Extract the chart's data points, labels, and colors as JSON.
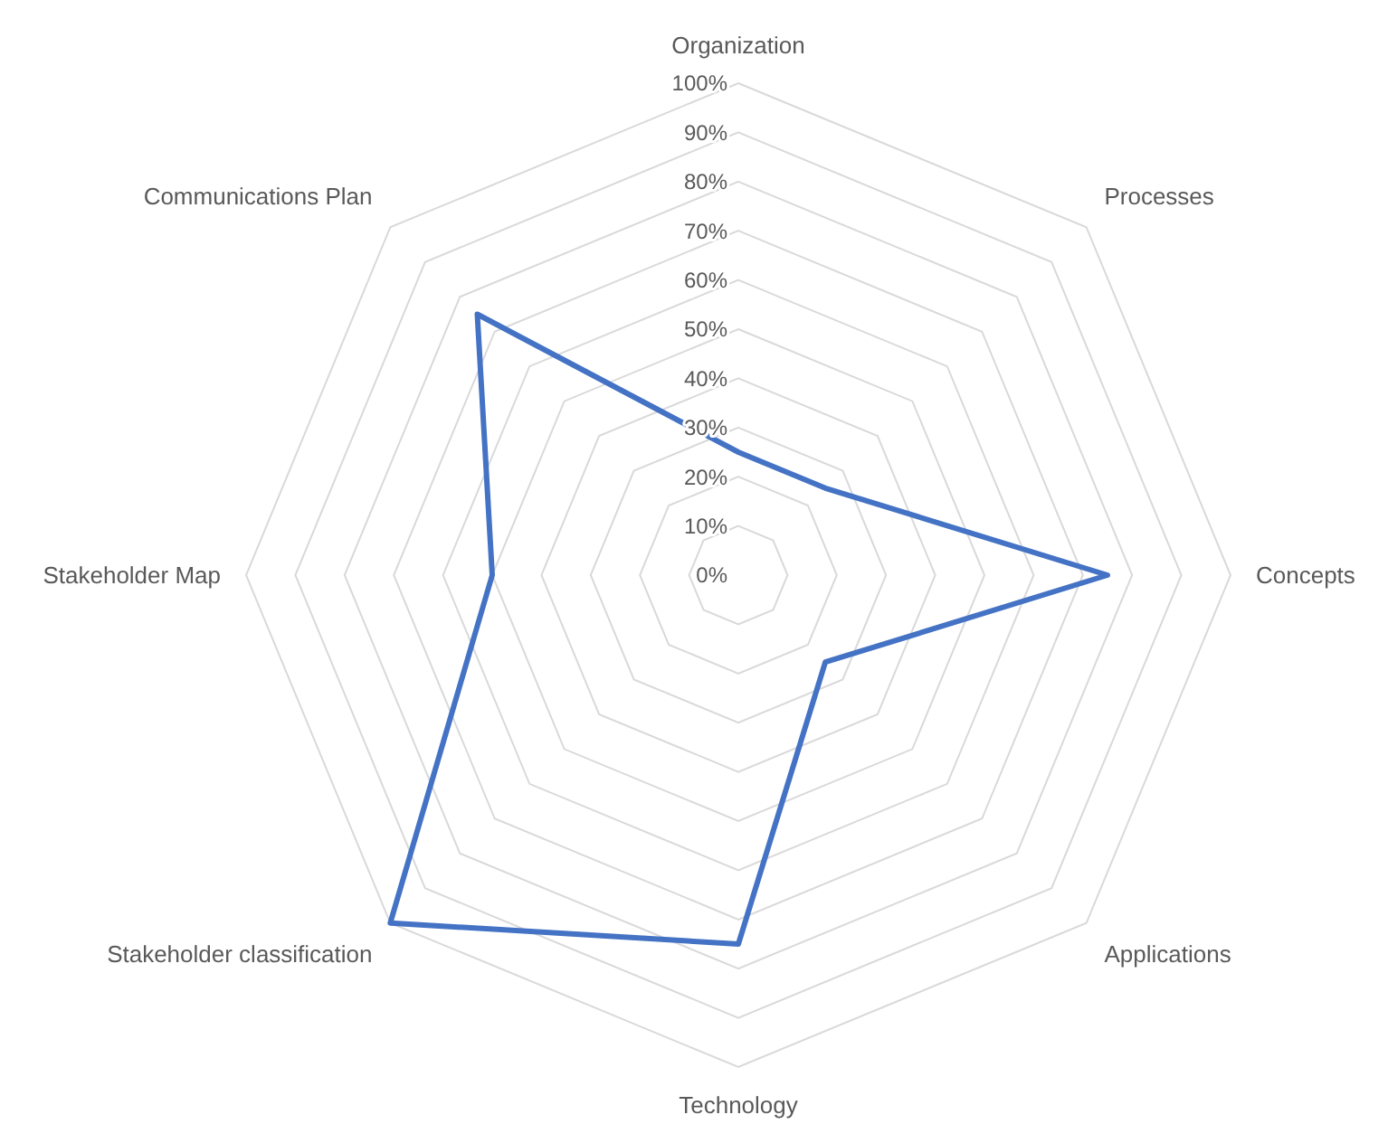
{
  "chart_data": {
    "type": "radar",
    "categories": [
      "Organization",
      "Processes",
      "Concepts",
      "Applications",
      "Technology",
      "Stakeholder classification",
      "Stakeholder Map",
      "Communications Plan"
    ],
    "series": [
      {
        "color": "#4472c4",
        "values": [
          25,
          25,
          75,
          25,
          75,
          100,
          50,
          75
        ]
      }
    ],
    "ylim": [
      0,
      100
    ],
    "yticks": [
      {
        "value": 0,
        "label": "0%"
      },
      {
        "value": 10,
        "label": "10%"
      },
      {
        "value": 20,
        "label": "20%"
      },
      {
        "value": 30,
        "label": "30%"
      },
      {
        "value": 40,
        "label": "40%"
      },
      {
        "value": 50,
        "label": "50%"
      },
      {
        "value": 60,
        "label": "60%"
      },
      {
        "value": 70,
        "label": "70%"
      },
      {
        "value": 80,
        "label": "80%"
      },
      {
        "value": 90,
        "label": "90%"
      },
      {
        "value": 100,
        "label": "100%"
      }
    ],
    "grid": true,
    "marker": "none",
    "line_style": "solid"
  }
}
